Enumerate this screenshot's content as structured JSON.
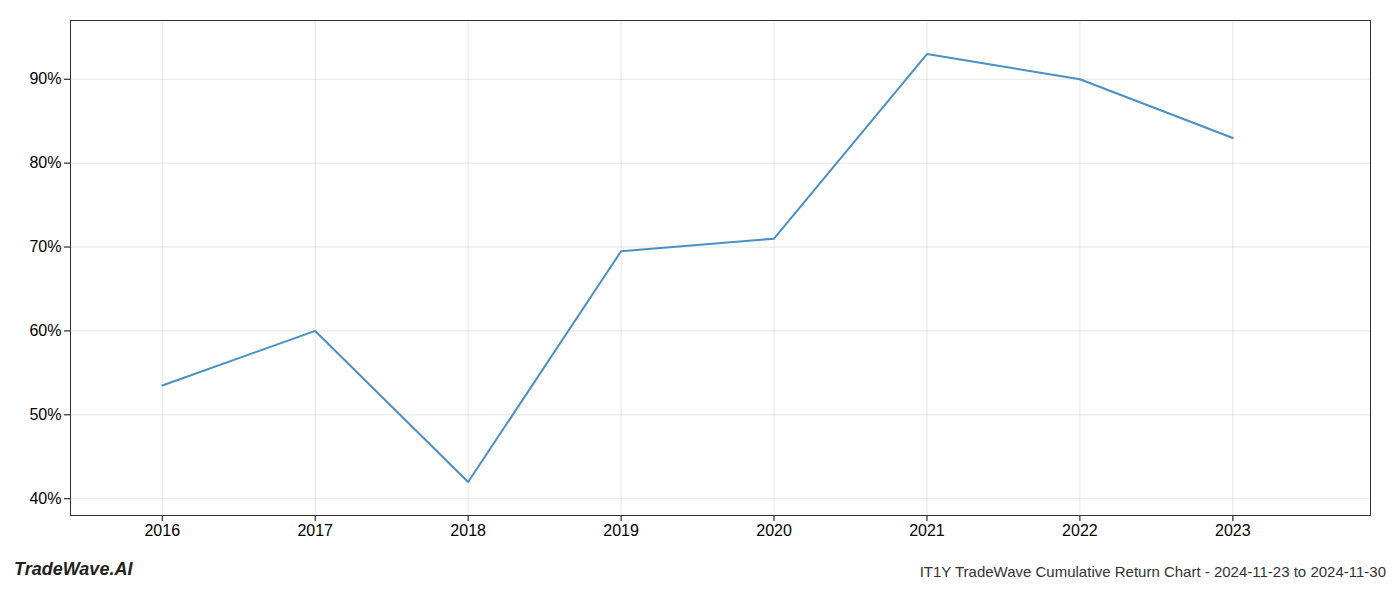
{
  "chart_data": {
    "type": "line",
    "title": "IT1Y TradeWave Cumulative Return Chart - 2024-11-23 to 2024-11-30",
    "annotations": [
      "TradeWave.AI"
    ],
    "x": [
      2016,
      2017,
      2018,
      2019,
      2020,
      2021,
      2022,
      2023
    ],
    "values": [
      53.5,
      60.0,
      42.0,
      69.5,
      71.0,
      93.0,
      90.0,
      83.0
    ],
    "color": "#4a90c4",
    "xlim": [
      2015.4,
      2023.9
    ],
    "ylim": [
      38,
      97
    ],
    "xticks": [
      2016,
      2017,
      2018,
      2019,
      2020,
      2021,
      2022,
      2023
    ],
    "yticks": [
      {
        "value": 40,
        "label": "40%"
      },
      {
        "value": 50,
        "label": "50%"
      },
      {
        "value": 60,
        "label": "60%"
      },
      {
        "value": 70,
        "label": "70%"
      },
      {
        "value": 80,
        "label": "80%"
      },
      {
        "value": 90,
        "label": "90%"
      }
    ],
    "grid": true
  }
}
